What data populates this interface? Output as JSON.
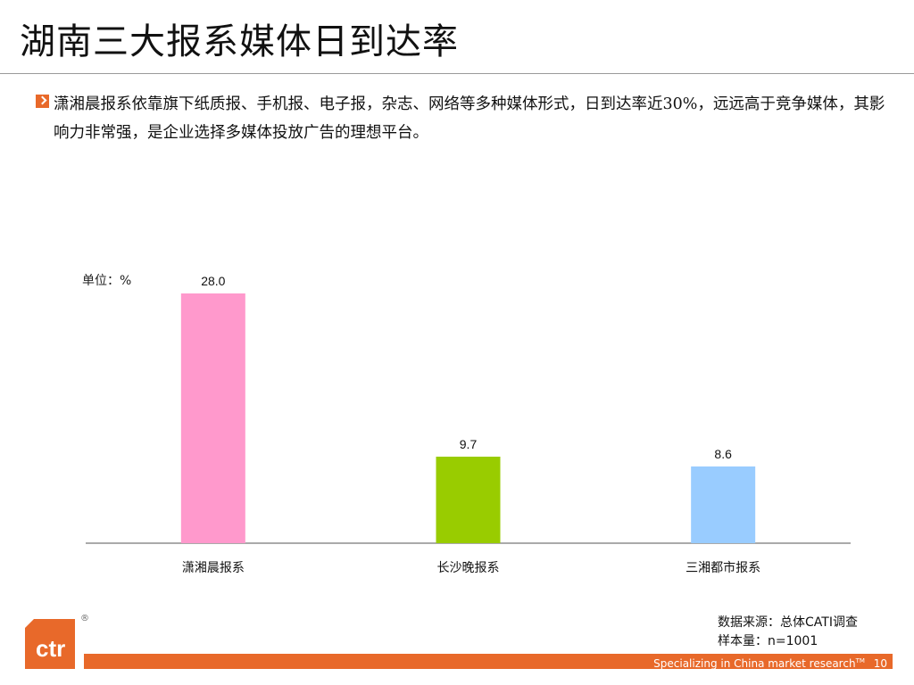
{
  "slide": {
    "title": "湖南三大报系媒体日到达率",
    "summary": "潇湘晨报系依靠旗下纸质报、手机报、电子报，杂志、网络等多种媒体形式，日到达率近30%，远远高于竞争媒体，其影响力非常强，是企业选择多媒体投放广告的理想平台。",
    "unit_label": "单位：%",
    "source_line1": "数据来源：总体CATI调查",
    "source_line2": "样本量：n=1001",
    "footer_text": "Specializing in China market research",
    "footer_tm": "TM",
    "page_number": "10",
    "logo_text": "ctr",
    "logo_mark": "®"
  },
  "chart_data": {
    "type": "bar",
    "categories": [
      "潇湘晨报系",
      "长沙晚报系",
      "三湘都市报系"
    ],
    "values": [
      28.0,
      9.7,
      8.6
    ],
    "value_labels": [
      "28.0",
      "9.7",
      "8.6"
    ],
    "colors": [
      "#ff99cc",
      "#99cc00",
      "#99ccff"
    ],
    "ylim": [
      0,
      30
    ],
    "grid": false,
    "legend": "none"
  },
  "colors": {
    "accent": "#e8692a"
  }
}
